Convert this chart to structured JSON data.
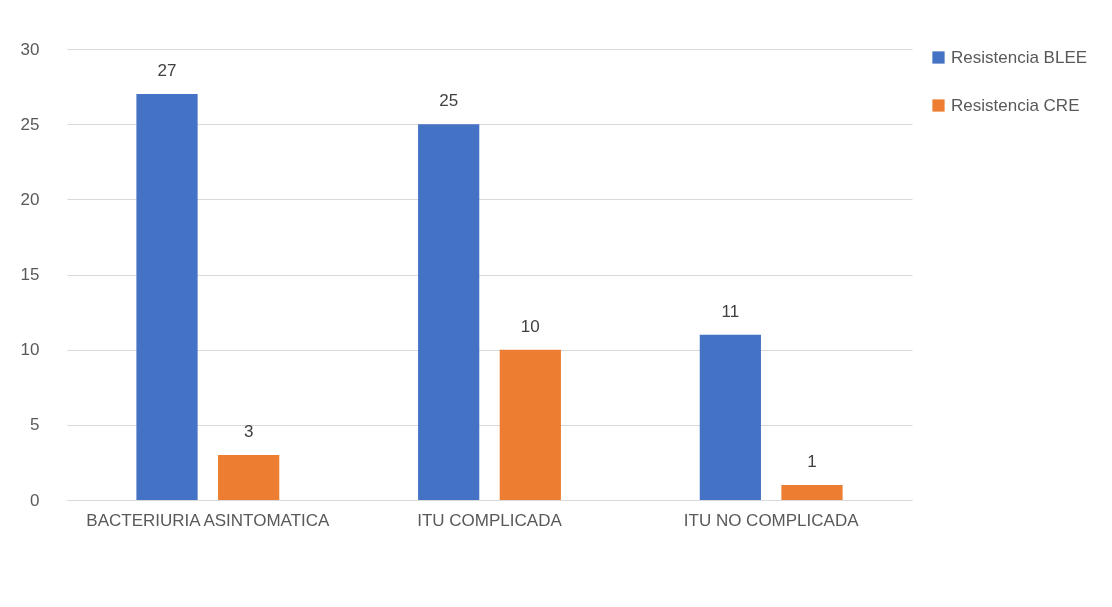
{
  "chart_data": {
    "type": "bar",
    "categories": [
      "BACTERIURIA ASINTOMATICA",
      "ITU COMPLICADA",
      "ITU NO COMPLICADA"
    ],
    "series": [
      {
        "name": "Resistencia BLEE",
        "color": "#4472c4",
        "values": [
          27,
          25,
          11
        ]
      },
      {
        "name": "Resistencia CRE",
        "color": "#ed7d31",
        "values": [
          3,
          10,
          1
        ]
      }
    ],
    "ylim": [
      0,
      30
    ],
    "yticks": [
      0,
      5,
      10,
      15,
      20,
      25,
      30
    ],
    "grid": "y",
    "legend": "right",
    "data_labels": true
  }
}
